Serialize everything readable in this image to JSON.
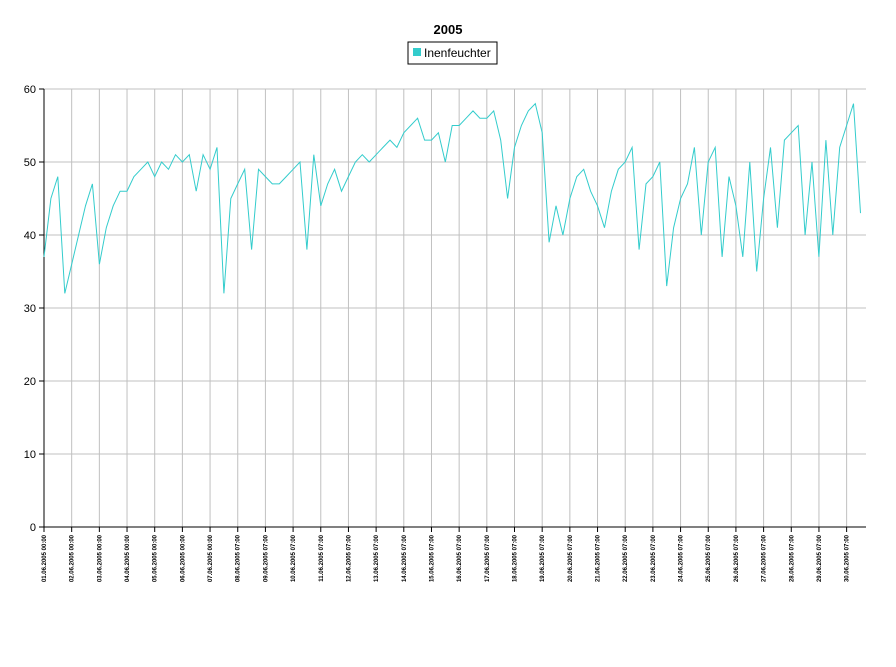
{
  "chart_data": {
    "type": "line",
    "title": "2005",
    "x": [
      0,
      0.25,
      0.5,
      0.75,
      1,
      1.25,
      1.5,
      1.75,
      2,
      2.25,
      2.5,
      2.75,
      3,
      3.25,
      3.5,
      3.75,
      4,
      4.25,
      4.5,
      4.75,
      5,
      5.25,
      5.5,
      5.75,
      6,
      6.25,
      6.5,
      6.75,
      7,
      7.25,
      7.5,
      7.75,
      8,
      8.25,
      8.5,
      8.75,
      9,
      9.25,
      9.5,
      9.75,
      10,
      10.25,
      10.5,
      10.75,
      11,
      11.25,
      11.5,
      11.75,
      12,
      12.25,
      12.5,
      12.75,
      13,
      13.25,
      13.5,
      13.75,
      14,
      14.25,
      14.5,
      14.75,
      15,
      15.25,
      15.5,
      15.75,
      16,
      16.25,
      16.5,
      16.75,
      17,
      17.25,
      17.5,
      17.75,
      18,
      18.25,
      18.5,
      18.75,
      19,
      19.25,
      19.5,
      19.75,
      20,
      20.25,
      20.5,
      20.75,
      21,
      21.25,
      21.5,
      21.75,
      22,
      22.25,
      22.5,
      22.75,
      23,
      23.25,
      23.5,
      23.75,
      24,
      24.25,
      24.5,
      24.75,
      25,
      25.25,
      25.5,
      25.75,
      26,
      26.25,
      26.5,
      26.75,
      27,
      27.25,
      27.5,
      27.75,
      28,
      28.25,
      28.5,
      28.75,
      29,
      29.25,
      29.5
    ],
    "series": [
      {
        "name": "Inenfeuchter",
        "color": "#33cccc",
        "values": [
          37,
          45,
          48,
          32,
          36,
          40,
          44,
          47,
          36,
          41,
          44,
          46,
          46,
          48,
          49,
          50,
          48,
          50,
          49,
          51,
          50,
          51,
          46,
          51,
          49,
          52,
          32,
          45,
          47,
          49,
          38,
          49,
          48,
          47,
          47,
          48,
          49,
          50,
          38,
          51,
          44,
          47,
          49,
          46,
          48,
          50,
          51,
          50,
          51,
          52,
          53,
          52,
          54,
          55,
          56,
          53,
          53,
          54,
          50,
          55,
          55,
          56,
          57,
          56,
          56,
          57,
          53,
          45,
          52,
          55,
          57,
          58,
          54,
          39,
          44,
          40,
          45,
          48,
          49,
          46,
          44,
          41,
          46,
          49,
          50,
          52,
          38,
          47,
          48,
          50,
          33,
          41,
          45,
          47,
          52,
          40,
          50,
          52,
          37,
          48,
          44,
          37,
          50,
          35,
          45,
          52,
          41,
          53,
          54,
          55,
          40,
          50,
          37,
          53,
          40,
          52,
          55,
          58,
          43
        ]
      }
    ],
    "xlim": [
      0,
      29.7
    ],
    "xticks": [
      {
        "value": 0,
        "label": "01.06.2005 00:00"
      },
      {
        "value": 1,
        "label": "02.06.2005 00:00"
      },
      {
        "value": 2,
        "label": "03.06.2005 00:00"
      },
      {
        "value": 3,
        "label": "04.06.2005 00:00"
      },
      {
        "value": 4,
        "label": "05.06.2005 00:00"
      },
      {
        "value": 5,
        "label": "06.06.2005 00:00"
      },
      {
        "value": 6,
        "label": "07.06.2005 00:00"
      },
      {
        "value": 7,
        "label": "08.06.2005 07:00"
      },
      {
        "value": 8,
        "label": "09.06.2005 07:00"
      },
      {
        "value": 9,
        "label": "10.06.2005 07:00"
      },
      {
        "value": 10,
        "label": "11.06.2005 07:00"
      },
      {
        "value": 11,
        "label": "12.06.2005 07:00"
      },
      {
        "value": 12,
        "label": "13.06.2005 07:00"
      },
      {
        "value": 13,
        "label": "14.06.2005 07:00"
      },
      {
        "value": 14,
        "label": "15.06.2005 07:00"
      },
      {
        "value": 15,
        "label": "16.06.2005 07:00"
      },
      {
        "value": 16,
        "label": "17.06.2005 07:00"
      },
      {
        "value": 17,
        "label": "18.06.2005 07:00"
      },
      {
        "value": 18,
        "label": "19.06.2005 07:00"
      },
      {
        "value": 19,
        "label": "20.06.2005 07:00"
      },
      {
        "value": 20,
        "label": "21.06.2005 07:00"
      },
      {
        "value": 21,
        "label": "22.06.2005 07:00"
      },
      {
        "value": 22,
        "label": "23.06.2005 07:00"
      },
      {
        "value": 23,
        "label": "24.06.2005 07:00"
      },
      {
        "value": 24,
        "label": "25.06.2005 07:00"
      },
      {
        "value": 25,
        "label": "26.06.2005 07:00"
      },
      {
        "value": 26,
        "label": "27.06.2005 07:00"
      },
      {
        "value": 27,
        "label": "28.06.2005 07:00"
      },
      {
        "value": 28,
        "label": "29.06.2005 07:00"
      },
      {
        "value": 29,
        "label": "30.06.2005 07:00"
      }
    ],
    "ylim": [
      0,
      60
    ],
    "yticks": [
      0,
      10,
      20,
      30,
      40,
      50,
      60
    ],
    "grid": true
  }
}
